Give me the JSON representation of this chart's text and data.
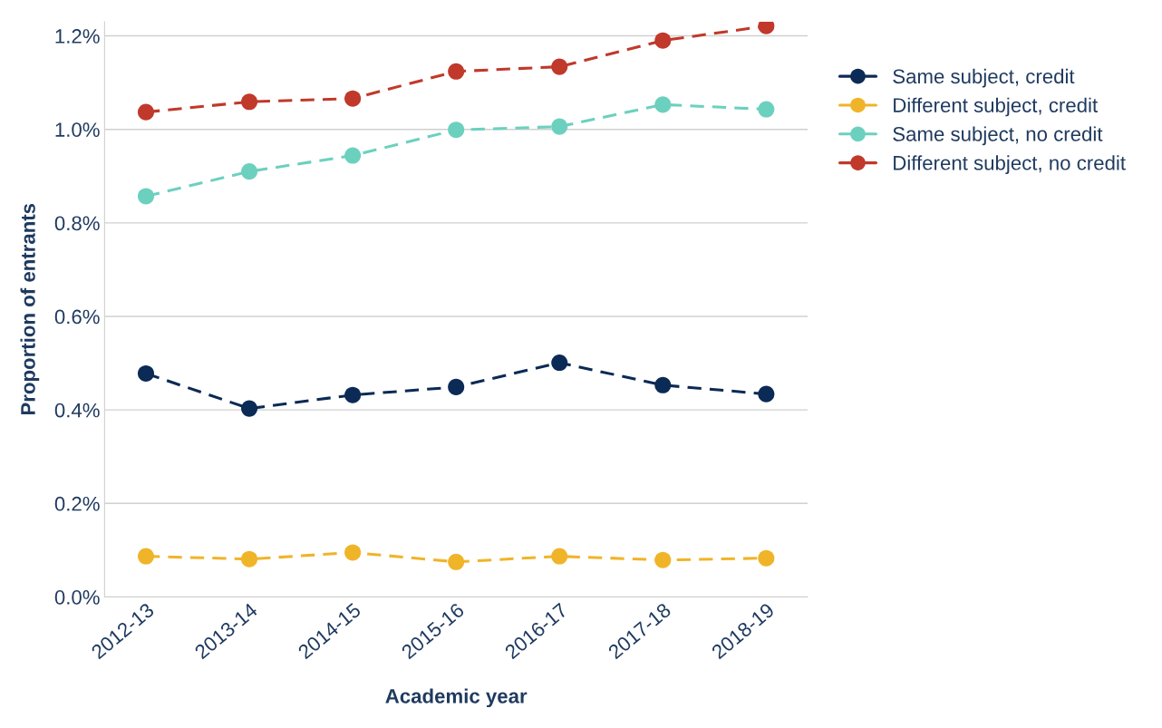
{
  "chart_data": {
    "type": "line",
    "xlabel": "Academic year",
    "ylabel": "Proportion of entrants",
    "categories": [
      "2012-13",
      "2013-14",
      "2014-15",
      "2015-16",
      "2016-17",
      "2017-18",
      "2018-19"
    ],
    "series": [
      {
        "name": "Same subject, credit",
        "color": "#0b2a55",
        "values": [
          0.478,
          0.403,
          0.432,
          0.449,
          0.501,
          0.453,
          0.434
        ]
      },
      {
        "name": "Different subject, credit",
        "color": "#f0b429",
        "values": [
          0.087,
          0.081,
          0.095,
          0.075,
          0.087,
          0.079,
          0.083
        ]
      },
      {
        "name": "Same subject, no credit",
        "color": "#6cd0bf",
        "values": [
          0.857,
          0.91,
          0.944,
          0.999,
          1.006,
          1.053,
          1.043
        ]
      },
      {
        "name": "Different subject, no credit",
        "color": "#c0392b",
        "values": [
          1.037,
          1.059,
          1.066,
          1.124,
          1.134,
          1.19,
          1.221
        ]
      }
    ],
    "ylim": [
      0,
      1.23
    ],
    "yticks": [
      {
        "value": 0,
        "label": "0.0%"
      },
      {
        "value": 0.2,
        "label": "0.2%"
      },
      {
        "value": 0.4,
        "label": "0.4%"
      },
      {
        "value": 0.6,
        "label": "0.6%"
      },
      {
        "value": 0.8,
        "label": "0.8%"
      },
      {
        "value": 1.0,
        "label": "1.0%"
      },
      {
        "value": 1.2,
        "label": "1.2%"
      }
    ],
    "grid": "y",
    "legend": "top right",
    "marker": "circle",
    "line_style": "dashed"
  }
}
